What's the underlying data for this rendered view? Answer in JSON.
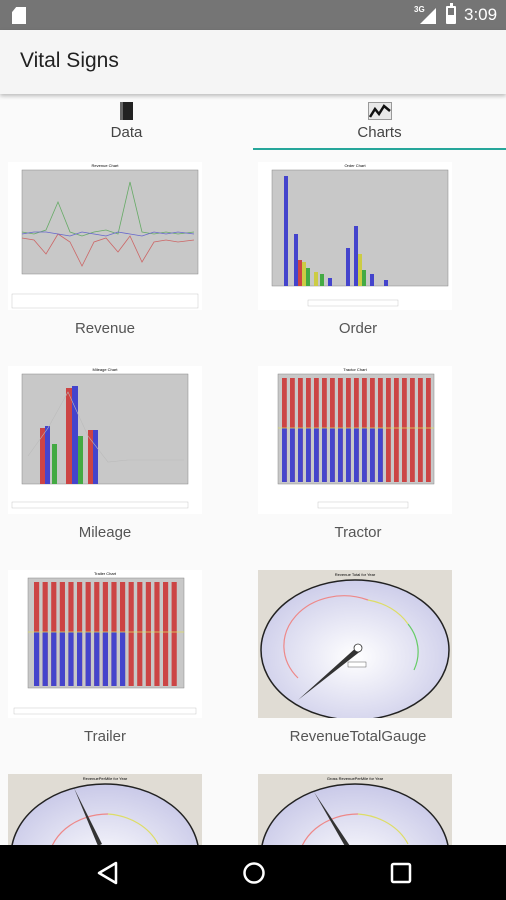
{
  "status_bar": {
    "network": "3G",
    "time": "3:09"
  },
  "app": {
    "title": "Vital Signs"
  },
  "tabs": [
    {
      "label": "Data",
      "icon": "book-icon",
      "active": false
    },
    {
      "label": "Charts",
      "icon": "line-chart-icon",
      "active": true
    }
  ],
  "charts": [
    {
      "caption": "Revenue",
      "thumb_title": "Revenue Chart",
      "kind": "line"
    },
    {
      "caption": "Order",
      "thumb_title": "Order Chart",
      "kind": "bar"
    },
    {
      "caption": "Mileage",
      "thumb_title": "Mileage Chart",
      "kind": "bar-line"
    },
    {
      "caption": "Tractor",
      "thumb_title": "Tractor Chart",
      "kind": "stacked-bar"
    },
    {
      "caption": "Trailer",
      "thumb_title": "Trailer Chart",
      "kind": "stacked-bar"
    },
    {
      "caption": "RevenueTotalGauge",
      "thumb_title": "Revenue Total for Year",
      "kind": "gauge"
    },
    {
      "caption": "",
      "thumb_title": "RevenuePerMile for Year",
      "kind": "gauge"
    },
    {
      "caption": "",
      "thumb_title": "Gross RevenuePerMile for Year",
      "kind": "gauge"
    }
  ],
  "colors": {
    "tab_indicator": "#26a69a",
    "status_bar": "#757575",
    "nav_bar": "#000000"
  },
  "nav": {
    "back": "back-icon",
    "home": "home-icon",
    "recents": "recents-icon"
  }
}
